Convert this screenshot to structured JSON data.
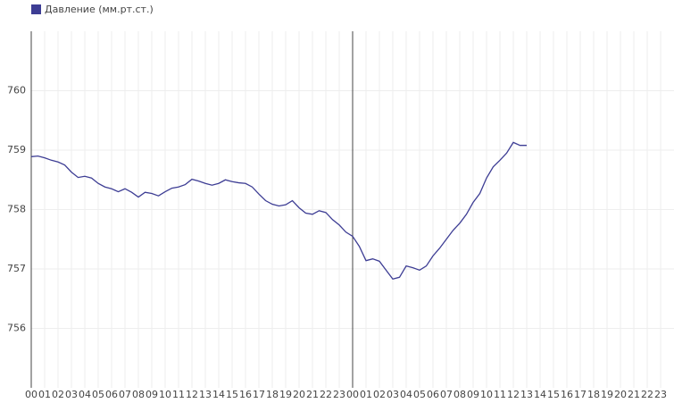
{
  "chart_data": {
    "type": "line",
    "x": [
      0,
      0.5,
      1,
      1.5,
      2,
      2.5,
      3,
      3.5,
      4,
      4.5,
      5,
      5.5,
      6,
      6.5,
      7,
      7.5,
      8,
      8.5,
      9,
      9.5,
      10,
      10.5,
      11,
      11.5,
      12,
      12.5,
      13,
      13.5,
      14,
      14.5,
      15,
      15.5,
      16,
      16.5,
      17,
      17.5,
      18,
      18.5,
      19,
      19.5,
      20,
      20.5,
      21,
      21.5,
      22,
      22.5,
      23,
      23.5,
      24,
      24.5,
      25,
      25.5,
      26,
      26.5,
      27,
      27.5,
      28,
      28.5,
      29,
      29.5,
      30,
      30.5,
      31,
      31.5,
      32,
      32.5,
      33,
      33.5,
      34,
      34.5,
      35,
      35.5,
      36,
      36.5,
      37
    ],
    "series": [
      {
        "name": "Давление (мм.рт.ст.)",
        "color": "#3d3d94",
        "values": [
          758.89,
          758.9,
          758.87,
          758.83,
          758.8,
          758.75,
          758.63,
          758.54,
          758.56,
          758.53,
          758.44,
          758.38,
          758.35,
          758.3,
          758.35,
          758.29,
          758.21,
          758.29,
          758.27,
          758.23,
          758.3,
          758.36,
          758.38,
          758.42,
          758.51,
          758.48,
          758.44,
          758.41,
          758.44,
          758.5,
          758.47,
          758.45,
          758.44,
          758.38,
          758.26,
          758.15,
          758.09,
          758.06,
          758.08,
          758.15,
          758.03,
          757.94,
          757.92,
          757.98,
          757.95,
          757.83,
          757.74,
          757.62,
          757.55,
          757.38,
          757.14,
          757.17,
          757.13,
          756.98,
          756.83,
          756.86,
          757.05,
          757.02,
          756.98,
          757.05,
          757.22,
          757.35,
          757.5,
          757.65,
          757.77,
          757.92,
          758.12,
          758.27,
          758.53,
          758.72,
          758.83,
          758.95,
          759.13,
          759.08,
          759.08
        ]
      }
    ],
    "xlim": [
      0,
      48
    ],
    "xticks": [
      {
        "value": 0,
        "label": "00"
      },
      {
        "value": 1,
        "label": "01"
      },
      {
        "value": 2,
        "label": "02"
      },
      {
        "value": 3,
        "label": "03"
      },
      {
        "value": 4,
        "label": "04"
      },
      {
        "value": 5,
        "label": "05"
      },
      {
        "value": 6,
        "label": "06"
      },
      {
        "value": 7,
        "label": "07"
      },
      {
        "value": 8,
        "label": "08"
      },
      {
        "value": 9,
        "label": "09"
      },
      {
        "value": 10,
        "label": "10"
      },
      {
        "value": 11,
        "label": "11"
      },
      {
        "value": 12,
        "label": "12"
      },
      {
        "value": 13,
        "label": "13"
      },
      {
        "value": 14,
        "label": "14"
      },
      {
        "value": 15,
        "label": "15"
      },
      {
        "value": 16,
        "label": "16"
      },
      {
        "value": 17,
        "label": "17"
      },
      {
        "value": 18,
        "label": "18"
      },
      {
        "value": 19,
        "label": "19"
      },
      {
        "value": 20,
        "label": "20"
      },
      {
        "value": 21,
        "label": "21"
      },
      {
        "value": 22,
        "label": "22"
      },
      {
        "value": 23,
        "label": "23"
      },
      {
        "value": 24,
        "label": "00"
      },
      {
        "value": 25,
        "label": "01"
      },
      {
        "value": 26,
        "label": "02"
      },
      {
        "value": 27,
        "label": "03"
      },
      {
        "value": 28,
        "label": "04"
      },
      {
        "value": 29,
        "label": "05"
      },
      {
        "value": 30,
        "label": "06"
      },
      {
        "value": 31,
        "label": "07"
      },
      {
        "value": 32,
        "label": "08"
      },
      {
        "value": 33,
        "label": "09"
      },
      {
        "value": 34,
        "label": "10"
      },
      {
        "value": 35,
        "label": "11"
      },
      {
        "value": 36,
        "label": "12"
      },
      {
        "value": 37,
        "label": "13"
      },
      {
        "value": 38,
        "label": "14"
      },
      {
        "value": 39,
        "label": "15"
      },
      {
        "value": 40,
        "label": "16"
      },
      {
        "value": 41,
        "label": "17"
      },
      {
        "value": 42,
        "label": "18"
      },
      {
        "value": 43,
        "label": "19"
      },
      {
        "value": 44,
        "label": "20"
      },
      {
        "value": 45,
        "label": "21"
      },
      {
        "value": 46,
        "label": "22"
      },
      {
        "value": 47,
        "label": "23"
      }
    ],
    "ylim": [
      755,
      761
    ],
    "yticks": [
      756,
      757,
      758,
      759,
      760
    ],
    "grid": true,
    "legend": "top-left"
  }
}
